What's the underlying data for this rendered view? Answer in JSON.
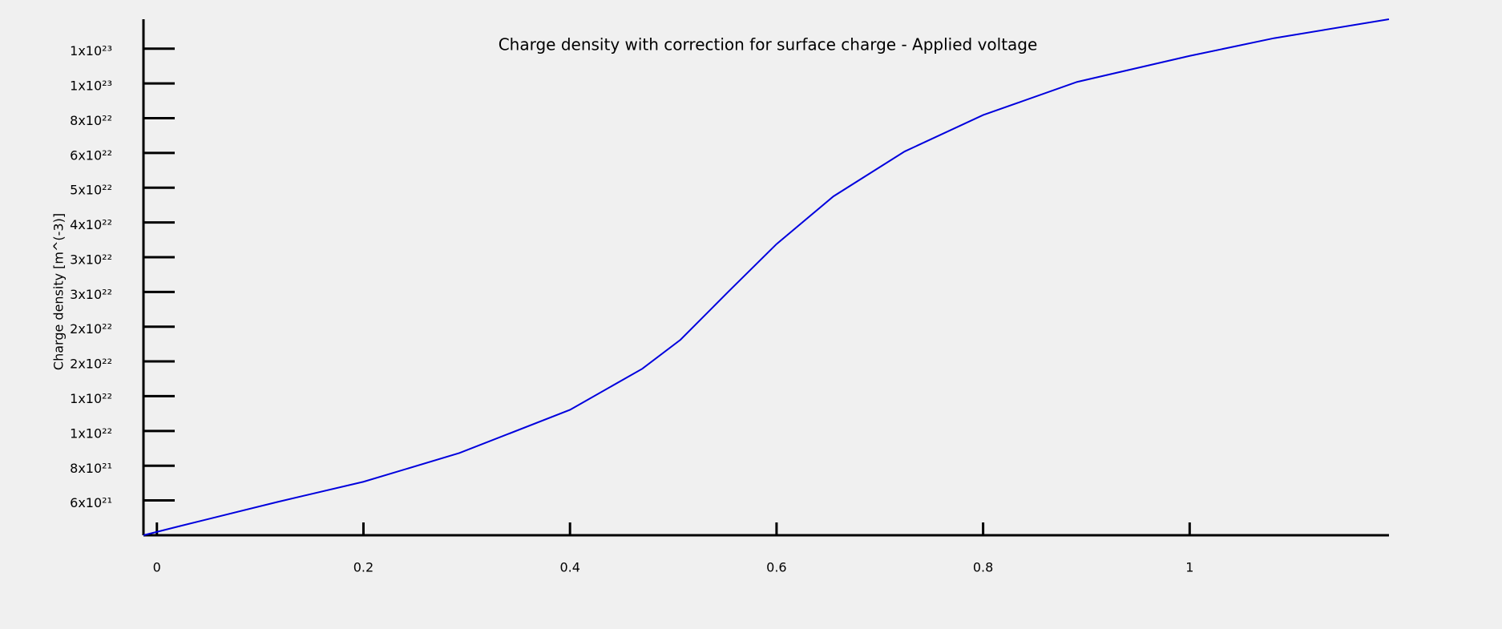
{
  "chart_data": {
    "type": "line",
    "title": "Charge density with correction for surface charge - Applied voltage",
    "y_label": "Charge density [m^(-3)]",
    "log_y": true,
    "xlim": [
      -0.013,
      1.193
    ],
    "xticks": [
      0,
      0.2,
      0.4,
      0.6,
      0.8,
      1
    ],
    "ylim": [
      5.01e+21,
      1.53e+23
    ],
    "yticks": [
      {
        "value": 6.31e+21,
        "label": "6x10²¹"
      },
      {
        "value": 7.94e+21,
        "label": "8x10²¹"
      },
      {
        "value": 1e+22,
        "label": "1x10²²"
      },
      {
        "value": 1.259e+22,
        "label": "1x10²²"
      },
      {
        "value": 1.585e+22,
        "label": "2x10²²"
      },
      {
        "value": 1.995e+22,
        "label": "2x10²²"
      },
      {
        "value": 2.512e+22,
        "label": "3x10²²"
      },
      {
        "value": 3.162e+22,
        "label": "3x10²²"
      },
      {
        "value": 3.981e+22,
        "label": "4x10²²"
      },
      {
        "value": 5.012e+22,
        "label": "5x10²²"
      },
      {
        "value": 6.31e+22,
        "label": "6x10²²"
      },
      {
        "value": 7.943e+22,
        "label": "8x10²²"
      },
      {
        "value": 1e+23,
        "label": "1x10²³"
      },
      {
        "value": 1.259e+23,
        "label": "1x10²³"
      }
    ],
    "x": [
      -0.013,
      0.024,
      0.117,
      0.2,
      0.293,
      0.4,
      0.47,
      0.507,
      0.553,
      0.6,
      0.655,
      0.724,
      0.8,
      0.891,
      1.0,
      1.082,
      1.193
    ],
    "series": [
      {
        "color": "#0000dd",
        "values": [
          5.01e+21,
          5.34e+21,
          6.25e+21,
          7.14e+21,
          8.64e+21,
          1.15e+22,
          1.51e+22,
          1.83e+22,
          2.51e+22,
          3.45e+22,
          4.73e+22,
          6.37e+22,
          8.11e+22,
          1.01e+23,
          1.2e+23,
          1.35e+23,
          1.53e+23
        ]
      }
    ]
  }
}
